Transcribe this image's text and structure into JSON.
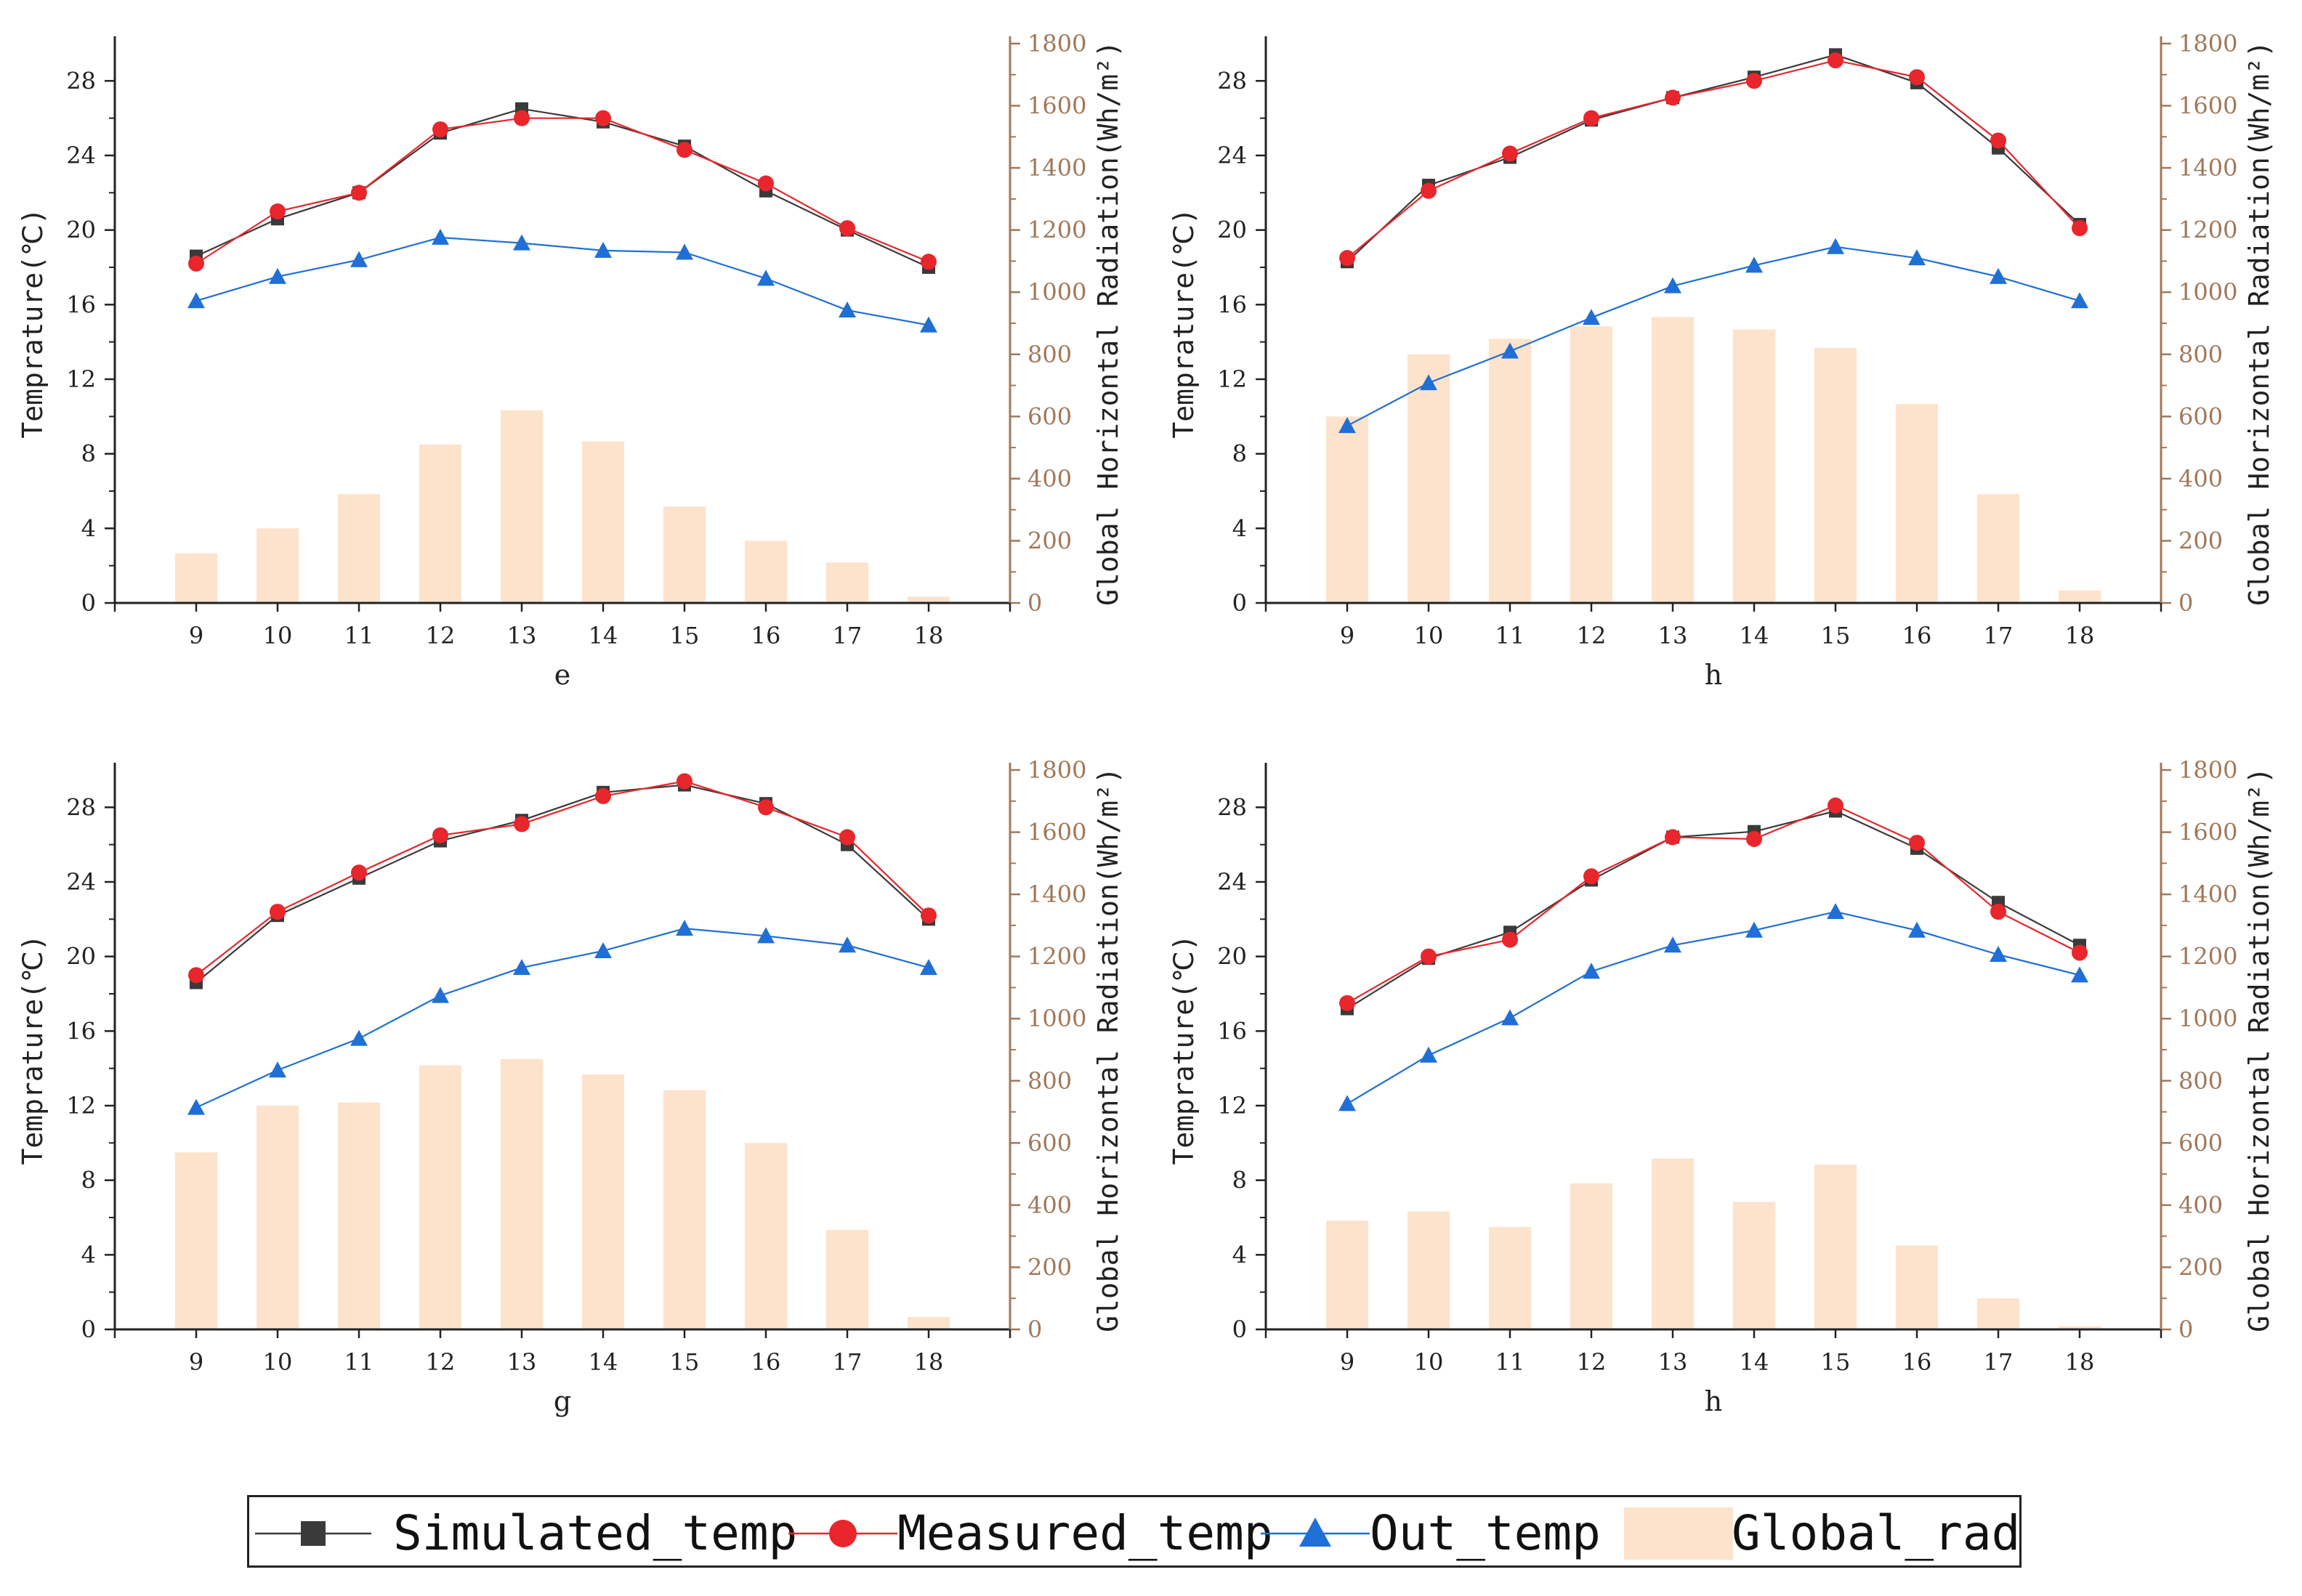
{
  "colors": {
    "simulated": "#3a3a3a",
    "measured": "#e8262c",
    "out_temp": "#1f6fd6",
    "global_rad": "#fde3cc",
    "right_axis": "#a0785a"
  },
  "legend": {
    "items": [
      "Simulated_temp",
      "Measured_temp",
      "Out_temp",
      "Global_rad"
    ]
  },
  "chart_data": [
    {
      "type": "bar+line",
      "xlabel": "e",
      "ylabel_left": "Temprature(℃)",
      "ylabel_right": "Global Horizontal Radiation(Wh/m²)",
      "x": [
        9,
        10,
        11,
        12,
        13,
        14,
        15,
        16,
        17,
        18
      ],
      "ylim_left": [
        0,
        30
      ],
      "yticks_left": [
        0,
        4,
        8,
        12,
        16,
        20,
        24,
        28
      ],
      "ylim_right": [
        0,
        1800
      ],
      "yticks_right": [
        0,
        200,
        400,
        600,
        800,
        1000,
        1200,
        1400,
        1600,
        1800
      ],
      "series": [
        {
          "name": "Simulated_temp",
          "values": [
            18.6,
            20.6,
            22.0,
            25.2,
            26.5,
            25.8,
            24.5,
            22.1,
            20.0,
            18.0
          ]
        },
        {
          "name": "Measured_temp",
          "values": [
            18.2,
            21.0,
            22.0,
            25.4,
            26.0,
            26.0,
            24.3,
            22.5,
            20.1,
            18.3
          ]
        },
        {
          "name": "Out_temp",
          "values": [
            16.2,
            17.5,
            18.4,
            19.6,
            19.3,
            18.9,
            18.8,
            17.4,
            15.7,
            14.9
          ]
        },
        {
          "name": "Global_rad",
          "axis": "right",
          "values": [
            160,
            240,
            350,
            510,
            620,
            520,
            310,
            200,
            130,
            20
          ]
        }
      ]
    },
    {
      "type": "bar+line",
      "xlabel": "h",
      "ylabel_left": "Temprature(℃)",
      "ylabel_right": "Global Horizontal Radiation(Wh/m²)",
      "x": [
        9,
        10,
        11,
        12,
        13,
        14,
        15,
        16,
        17,
        18
      ],
      "ylim_left": [
        0,
        30
      ],
      "yticks_left": [
        0,
        4,
        8,
        12,
        16,
        20,
        24,
        28
      ],
      "ylim_right": [
        0,
        1800
      ],
      "yticks_right": [
        0,
        200,
        400,
        600,
        800,
        1000,
        1200,
        1400,
        1600,
        1800
      ],
      "series": [
        {
          "name": "Simulated_temp",
          "values": [
            18.3,
            22.4,
            23.9,
            25.9,
            27.1,
            28.2,
            29.4,
            27.9,
            24.4,
            20.3
          ]
        },
        {
          "name": "Measured_temp",
          "values": [
            18.5,
            22.1,
            24.1,
            26.0,
            27.1,
            28.0,
            29.1,
            28.2,
            24.8,
            20.1
          ]
        },
        {
          "name": "Out_temp",
          "values": [
            9.5,
            11.8,
            13.5,
            15.3,
            17.0,
            18.1,
            19.1,
            18.5,
            17.5,
            16.2
          ]
        },
        {
          "name": "Global_rad",
          "axis": "right",
          "values": [
            600,
            800,
            850,
            890,
            920,
            880,
            820,
            640,
            350,
            40
          ]
        }
      ]
    },
    {
      "type": "bar+line",
      "xlabel": "g",
      "ylabel_left": "Temprature(℃)",
      "ylabel_right": "Global Horizontal Radiation(Wh/m²)",
      "x": [
        9,
        10,
        11,
        12,
        13,
        14,
        15,
        16,
        17,
        18
      ],
      "ylim_left": [
        0,
        30
      ],
      "yticks_left": [
        0,
        4,
        8,
        12,
        16,
        20,
        24,
        28
      ],
      "ylim_right": [
        0,
        1800
      ],
      "yticks_right": [
        0,
        200,
        400,
        600,
        800,
        1000,
        1200,
        1400,
        1600,
        1800
      ],
      "series": [
        {
          "name": "Simulated_temp",
          "values": [
            18.6,
            22.2,
            24.2,
            26.2,
            27.3,
            28.8,
            29.2,
            28.2,
            26.0,
            22.0
          ]
        },
        {
          "name": "Measured_temp",
          "values": [
            19.0,
            22.4,
            24.5,
            26.5,
            27.1,
            28.6,
            29.4,
            28.0,
            26.4,
            22.2
          ]
        },
        {
          "name": "Out_temp",
          "values": [
            11.9,
            13.9,
            15.6,
            17.9,
            19.4,
            20.3,
            21.5,
            21.1,
            20.6,
            19.4
          ]
        },
        {
          "name": "Global_rad",
          "axis": "right",
          "values": [
            570,
            720,
            730,
            850,
            870,
            820,
            770,
            600,
            320,
            40
          ]
        }
      ]
    },
    {
      "type": "bar+line",
      "xlabel": "h",
      "ylabel_left": "Temprature(℃)",
      "ylabel_right": "Global Horizontal Radiation(Wh/m²)",
      "x": [
        9,
        10,
        11,
        12,
        13,
        14,
        15,
        16,
        17,
        18
      ],
      "ylim_left": [
        0,
        30
      ],
      "yticks_left": [
        0,
        4,
        8,
        12,
        16,
        20,
        24,
        28
      ],
      "ylim_right": [
        0,
        1800
      ],
      "yticks_right": [
        0,
        200,
        400,
        600,
        800,
        1000,
        1200,
        1400,
        1600,
        1800
      ],
      "series": [
        {
          "name": "Simulated_temp",
          "values": [
            17.2,
            19.9,
            21.3,
            24.1,
            26.4,
            26.7,
            27.8,
            25.8,
            22.9,
            20.6
          ]
        },
        {
          "name": "Measured_temp",
          "values": [
            17.5,
            20.0,
            20.9,
            24.3,
            26.4,
            26.3,
            28.1,
            26.1,
            22.4,
            20.2
          ]
        },
        {
          "name": "Out_temp",
          "values": [
            12.1,
            14.7,
            16.7,
            19.2,
            20.6,
            21.4,
            22.4,
            21.4,
            20.1,
            19.0
          ]
        },
        {
          "name": "Global_rad",
          "axis": "right",
          "values": [
            350,
            380,
            330,
            470,
            550,
            410,
            530,
            270,
            100,
            10
          ]
        }
      ]
    }
  ]
}
